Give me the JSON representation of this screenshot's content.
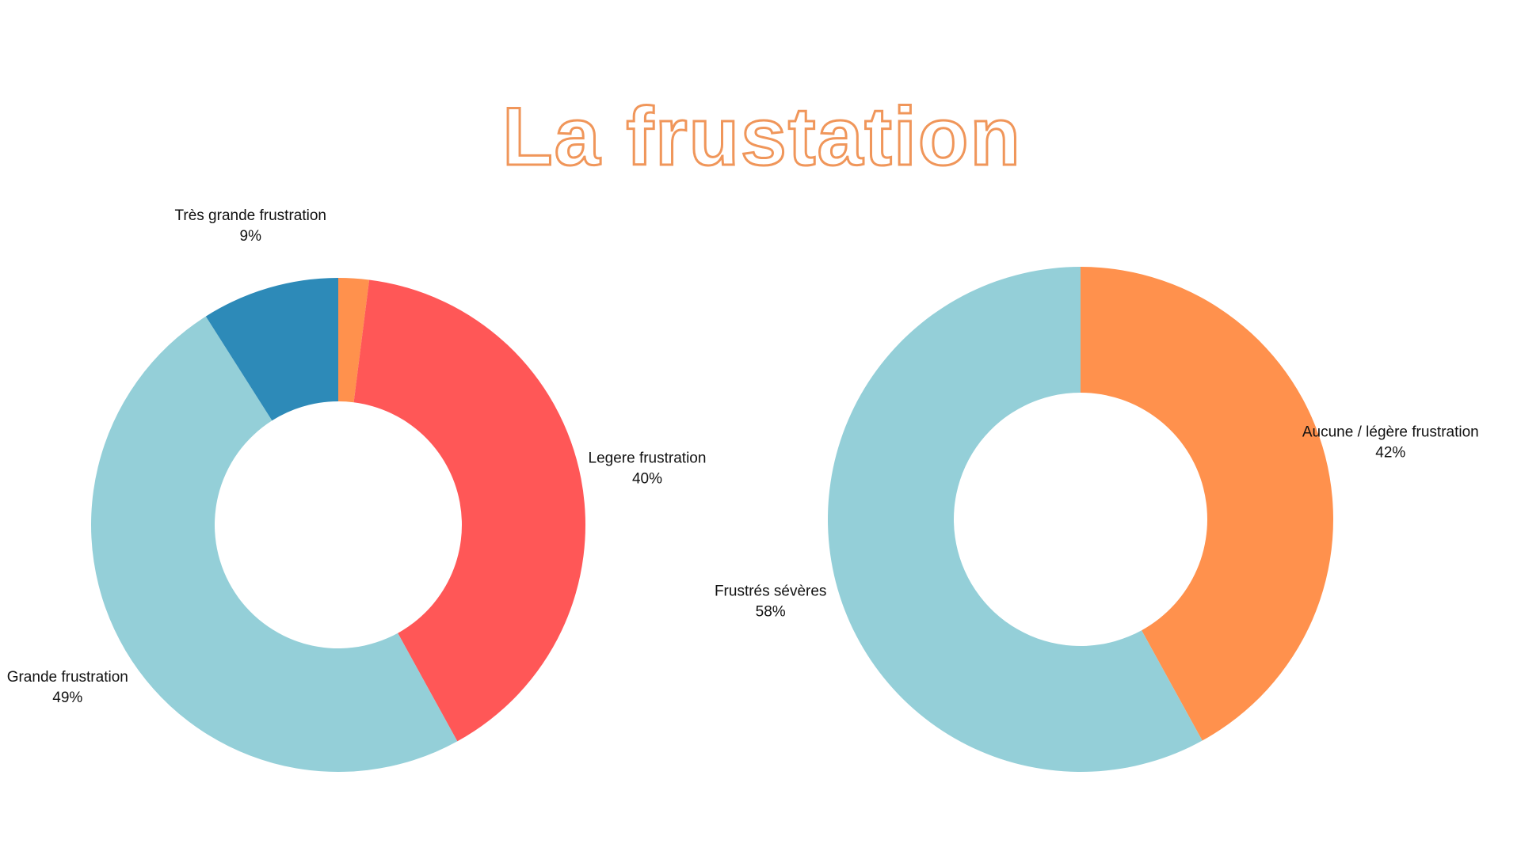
{
  "chart_data": [
    {
      "type": "donut",
      "title": "La frustation",
      "categories": [
        null,
        "Legere frustration",
        "Grande frustration",
        "Très grande frustration"
      ],
      "values": [
        2,
        40,
        49,
        9
      ],
      "value_labels": [
        null,
        "40%",
        "49%",
        "9%"
      ],
      "colors": [
        "#FF914D",
        "#FF5757",
        "#94CFD8",
        "#2D8AB8"
      ]
    },
    {
      "type": "donut",
      "categories": [
        "Aucune / légère frustration",
        "Frustrés sévères"
      ],
      "values": [
        42,
        58
      ],
      "value_labels": [
        "42%",
        "58%"
      ],
      "colors": [
        "#FF914D",
        "#94CFD8"
      ]
    }
  ]
}
